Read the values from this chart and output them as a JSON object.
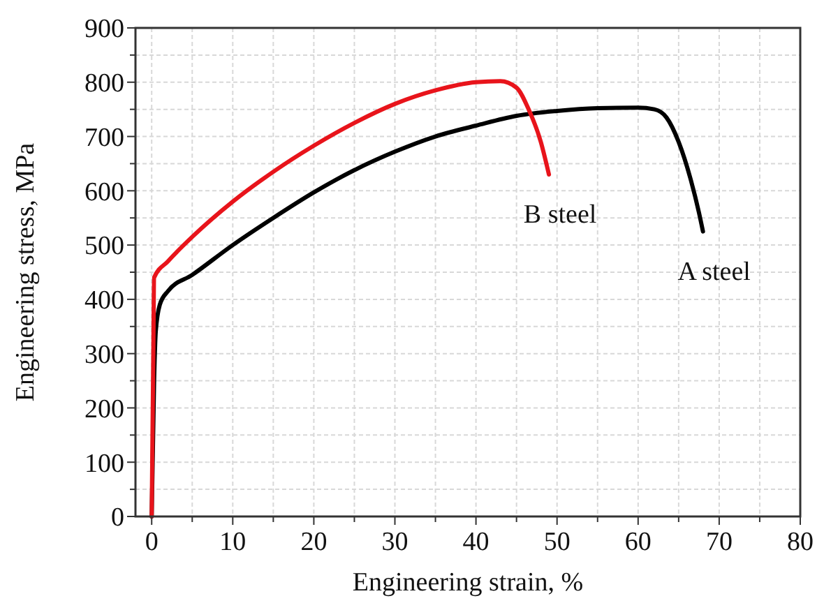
{
  "chart_data": {
    "type": "line",
    "xlabel": "Engineering strain, %",
    "ylabel": "Engineering stress, MPa",
    "xlim": [
      -2,
      80
    ],
    "ylim": [
      0,
      900
    ],
    "xticks": [
      0,
      {
        "value": 5,
        "label": null
      },
      10,
      {
        "value": 15,
        "label": null
      },
      20,
      {
        "value": 25,
        "label": null
      },
      30,
      {
        "value": 35,
        "label": null
      },
      40,
      {
        "value": 45,
        "label": null
      },
      50,
      {
        "value": 55,
        "label": null
      },
      60,
      {
        "value": 65,
        "label": null
      },
      70,
      {
        "value": 75,
        "label": null
      },
      80
    ],
    "yticks": [
      0,
      {
        "value": 50,
        "label": null
      },
      100,
      {
        "value": 150,
        "label": null
      },
      200,
      {
        "value": 250,
        "label": null
      },
      300,
      {
        "value": 350,
        "label": null
      },
      400,
      {
        "value": 450,
        "label": null
      },
      500,
      {
        "value": 550,
        "label": null
      },
      600,
      {
        "value": 650,
        "label": null
      },
      700,
      {
        "value": 750,
        "label": null
      },
      800,
      {
        "value": 850,
        "label": null
      },
      900
    ],
    "grid": true,
    "marker": "none",
    "line_style": "solid",
    "series": [
      {
        "color": "#000000",
        "x": [
          0,
          0.3,
          0.5,
          1,
          2,
          5,
          10,
          15,
          20,
          25,
          30,
          35,
          40,
          45,
          50,
          55,
          60,
          62,
          63.5,
          65,
          66.5,
          67.5,
          68
        ],
        "values": [
          0,
          250,
          340,
          390,
          415,
          445,
          500,
          550,
          597,
          638,
          672,
          700,
          720,
          738,
          747,
          752,
          753,
          750,
          735,
          690,
          620,
          560,
          525
        ]
      },
      {
        "color": "#e8141b",
        "x": [
          0,
          0.2,
          0.3,
          2,
          5,
          10,
          15,
          20,
          25,
          30,
          35,
          40,
          43,
          45,
          46.5,
          48,
          49
        ],
        "values": [
          0,
          300,
          440,
          470,
          515,
          580,
          635,
          683,
          725,
          760,
          785,
          800,
          802,
          790,
          750,
          690,
          630
        ]
      }
    ],
    "annotations": [
      "A steel",
      "B steel"
    ]
  }
}
